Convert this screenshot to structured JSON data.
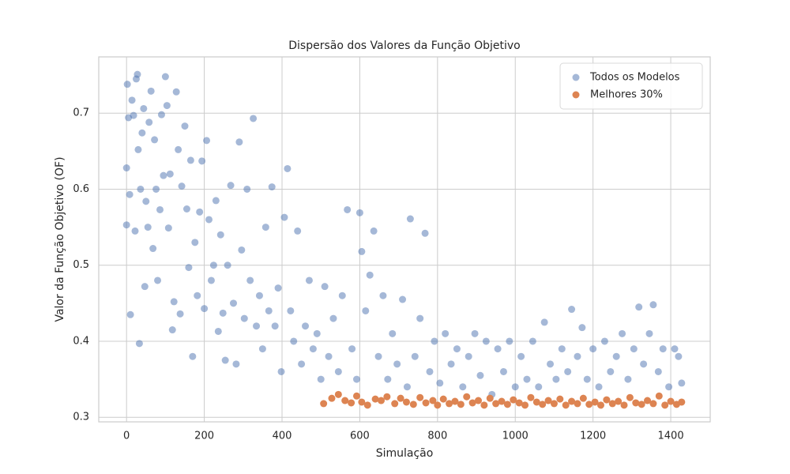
{
  "chart_data": {
    "type": "scatter",
    "title": "Dispersão dos Valores da Função Objetivo",
    "xlabel": "Simulação",
    "ylabel": "Valor da Função Objetivo (OF)",
    "xlim": [
      -71.5,
      1501.5
    ],
    "xticks": [
      0,
      200,
      400,
      600,
      800,
      1000,
      1200,
      1400
    ],
    "ylim": [
      0.294,
      0.774
    ],
    "yticks": [
      0.3,
      0.4,
      0.5,
      0.6,
      0.7
    ],
    "grid": true,
    "legend": "upper-right",
    "series": [
      {
        "name": "Todos os Modelos",
        "color": "#4c72b0",
        "x": [
          0,
          0,
          2,
          5,
          8,
          10,
          14,
          18,
          22,
          25,
          28,
          30,
          33,
          36,
          40,
          44,
          47,
          50,
          55,
          58,
          63,
          68,
          72,
          76,
          80,
          86,
          90,
          95,
          100,
          104,
          108,
          112,
          118,
          122,
          128,
          133,
          138,
          142,
          150,
          155,
          160,
          165,
          170,
          176,
          182,
          188,
          194,
          200,
          206,
          212,
          218,
          224,
          230,
          236,
          242,
          248,
          254,
          260,
          268,
          275,
          282,
          290,
          296,
          303,
          310,
          318,
          326,
          334,
          342,
          350,
          358,
          366,
          374,
          382,
          390,
          398,
          406,
          414,
          422,
          430,
          440,
          450,
          460,
          470,
          480,
          490,
          500,
          510,
          520,
          532,
          545,
          555,
          568,
          580,
          592,
          600,
          605,
          615,
          626,
          636,
          648,
          660,
          672,
          684,
          696,
          710,
          722,
          730,
          742,
          755,
          768,
          780,
          792,
          806,
          820,
          835,
          850,
          865,
          880,
          896,
          910,
          925,
          940,
          955,
          970,
          985,
          1000,
          1015,
          1030,
          1045,
          1060,
          1075,
          1090,
          1105,
          1120,
          1135,
          1145,
          1160,
          1172,
          1185,
          1200,
          1215,
          1230,
          1245,
          1260,
          1275,
          1290,
          1305,
          1318,
          1330,
          1345,
          1355,
          1368,
          1380,
          1395,
          1410,
          1420,
          1428
        ],
        "values": [
          0.628,
          0.553,
          0.738,
          0.694,
          0.593,
          0.435,
          0.717,
          0.697,
          0.545,
          0.745,
          0.751,
          0.652,
          0.397,
          0.6,
          0.674,
          0.706,
          0.472,
          0.584,
          0.55,
          0.688,
          0.729,
          0.522,
          0.665,
          0.6,
          0.48,
          0.573,
          0.698,
          0.618,
          0.748,
          0.71,
          0.549,
          0.62,
          0.415,
          0.452,
          0.728,
          0.652,
          0.436,
          0.604,
          0.683,
          0.574,
          0.497,
          0.638,
          0.38,
          0.53,
          0.46,
          0.57,
          0.637,
          0.443,
          0.664,
          0.56,
          0.48,
          0.5,
          0.585,
          0.413,
          0.54,
          0.437,
          0.375,
          0.5,
          0.605,
          0.45,
          0.37,
          0.662,
          0.52,
          0.43,
          0.6,
          0.48,
          0.693,
          0.42,
          0.46,
          0.39,
          0.55,
          0.44,
          0.603,
          0.42,
          0.47,
          0.36,
          0.563,
          0.627,
          0.44,
          0.4,
          0.545,
          0.37,
          0.42,
          0.48,
          0.39,
          0.41,
          0.35,
          0.472,
          0.38,
          0.43,
          0.36,
          0.46,
          0.573,
          0.39,
          0.35,
          0.569,
          0.518,
          0.44,
          0.487,
          0.545,
          0.38,
          0.46,
          0.35,
          0.41,
          0.37,
          0.455,
          0.34,
          0.561,
          0.38,
          0.43,
          0.542,
          0.36,
          0.4,
          0.345,
          0.41,
          0.37,
          0.39,
          0.34,
          0.38,
          0.41,
          0.355,
          0.4,
          0.33,
          0.39,
          0.36,
          0.4,
          0.34,
          0.38,
          0.35,
          0.4,
          0.34,
          0.425,
          0.37,
          0.35,
          0.39,
          0.36,
          0.442,
          0.38,
          0.418,
          0.35,
          0.39,
          0.34,
          0.4,
          0.36,
          0.38,
          0.41,
          0.35,
          0.39,
          0.445,
          0.37,
          0.41,
          0.448,
          0.36,
          0.39,
          0.34,
          0.39,
          0.38,
          0.345
        ]
      },
      {
        "name": "Melhores 30%",
        "color": "#dd8452",
        "x": [
          507,
          528,
          545,
          562,
          578,
          592,
          605,
          620,
          640,
          655,
          670,
          690,
          705,
          720,
          738,
          755,
          770,
          788,
          800,
          815,
          830,
          845,
          860,
          875,
          890,
          905,
          920,
          935,
          950,
          965,
          980,
          995,
          1010,
          1025,
          1040,
          1055,
          1070,
          1085,
          1100,
          1115,
          1130,
          1145,
          1160,
          1175,
          1190,
          1205,
          1220,
          1235,
          1250,
          1265,
          1280,
          1295,
          1310,
          1325,
          1340,
          1355,
          1370,
          1385,
          1400,
          1415,
          1428
        ],
        "values": [
          0.318,
          0.325,
          0.33,
          0.322,
          0.319,
          0.328,
          0.32,
          0.316,
          0.324,
          0.322,
          0.327,
          0.318,
          0.325,
          0.32,
          0.317,
          0.326,
          0.319,
          0.322,
          0.316,
          0.324,
          0.318,
          0.321,
          0.317,
          0.327,
          0.319,
          0.322,
          0.316,
          0.325,
          0.318,
          0.321,
          0.317,
          0.323,
          0.319,
          0.316,
          0.326,
          0.32,
          0.317,
          0.322,
          0.318,
          0.324,
          0.316,
          0.321,
          0.318,
          0.325,
          0.317,
          0.32,
          0.316,
          0.323,
          0.318,
          0.321,
          0.316,
          0.326,
          0.319,
          0.317,
          0.322,
          0.318,
          0.328,
          0.316,
          0.321,
          0.317,
          0.32
        ]
      }
    ]
  }
}
